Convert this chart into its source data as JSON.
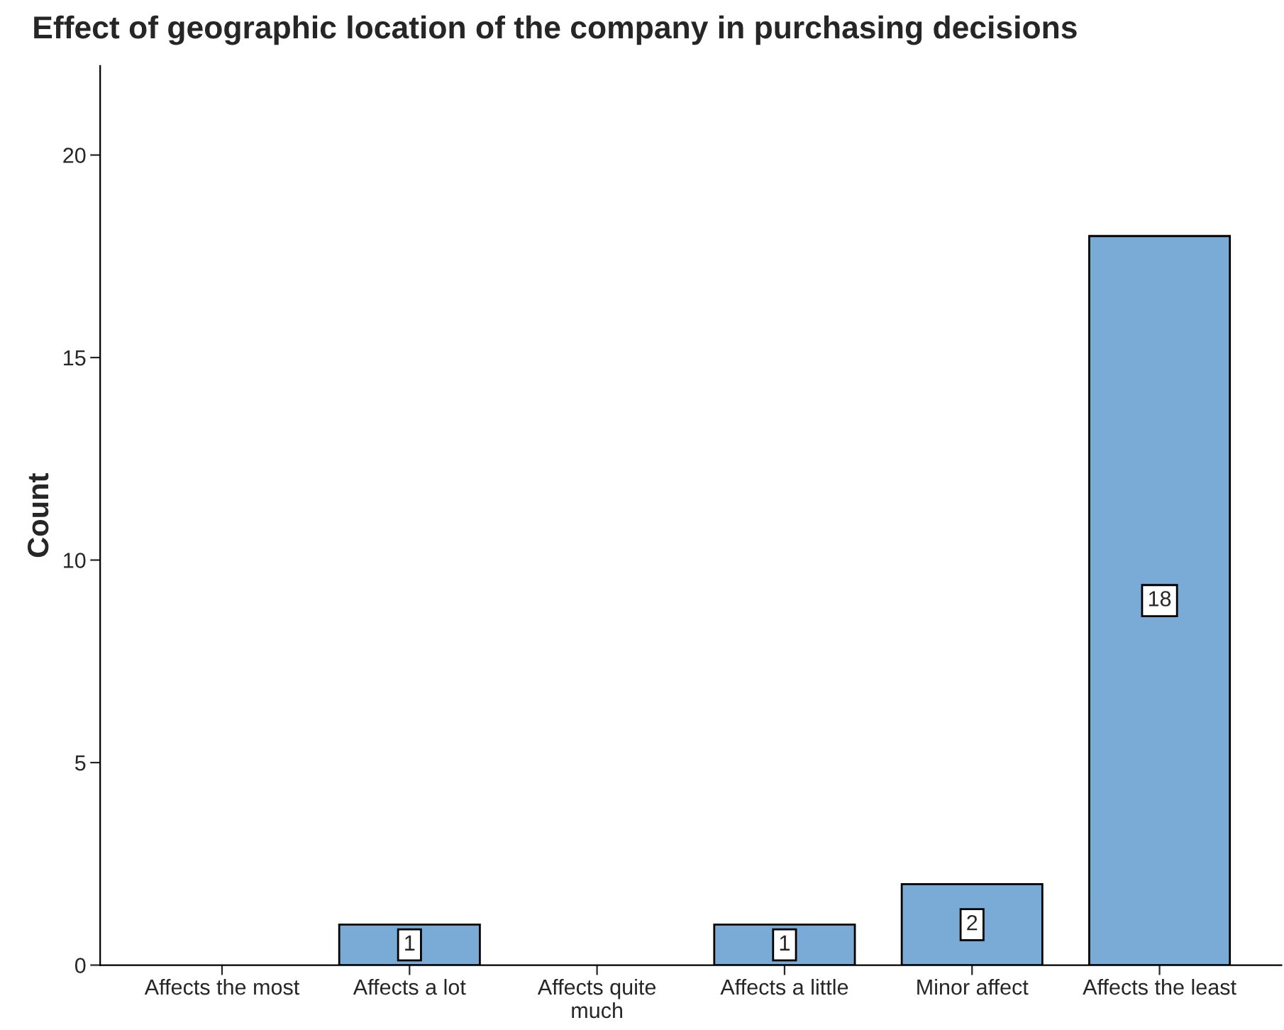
{
  "chart_data": {
    "type": "bar",
    "title": "Effect of geographic location of the company in purchasing decisions",
    "ylabel": "Count",
    "categories": [
      "Affects the most",
      "Affects a lot",
      "Affects quite much",
      "Affects a little",
      "Minor affect",
      "Affects the least"
    ],
    "values": [
      0,
      1,
      0,
      1,
      2,
      18
    ],
    "value_labels": [
      null,
      "1",
      null,
      "1",
      "2",
      "18"
    ],
    "color": "#7aaad6",
    "ylim": [
      0,
      22.2
    ],
    "yticks": [
      0,
      5,
      10,
      15,
      20
    ],
    "grid": false
  }
}
